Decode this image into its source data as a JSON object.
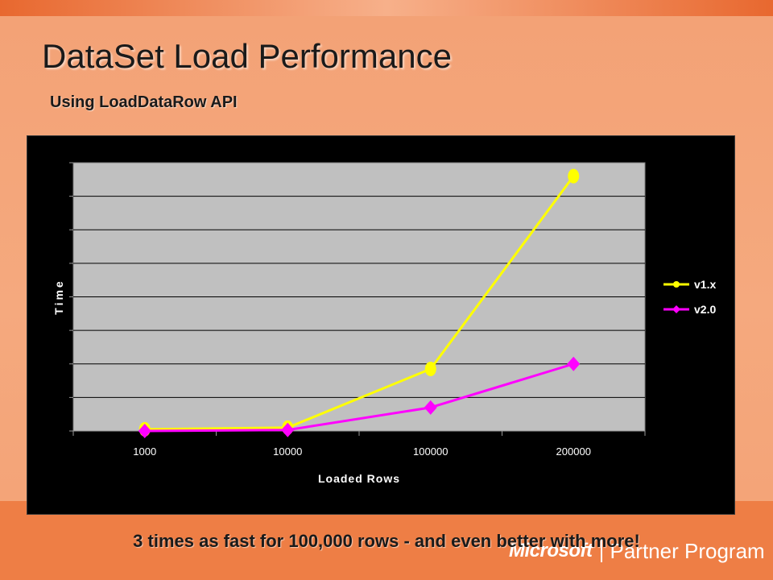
{
  "slide": {
    "title": "DataSet Load Performance",
    "subtitle": "Using LoadDataRow API",
    "footer": "3 times as fast for 100,000 rows - and even better with more!"
  },
  "branding": {
    "logo": "Microsoft",
    "program": "Partner Program"
  },
  "colors": {
    "background": "#F4A578",
    "chart_frame": "#000000",
    "plot_area": "#C0C0C0",
    "series_v1": "#FFFF00",
    "series_v2": "#FF00FF"
  },
  "chart_data": {
    "type": "line",
    "title": "",
    "xlabel": "Loaded Rows",
    "ylabel": "Time",
    "categories": [
      "1000",
      "10000",
      "100000",
      "200000"
    ],
    "series": [
      {
        "name": "v1.x",
        "values": [
          0.5,
          1,
          18.5,
          76
        ],
        "color": "#FFFF00",
        "marker": "circle"
      },
      {
        "name": "v2.0",
        "values": [
          0,
          0.3,
          7,
          20
        ],
        "color": "#FF00FF",
        "marker": "diamond"
      }
    ],
    "ylim": [
      0,
      80
    ],
    "y_gridlines": 8,
    "y_tick_labels_shown": false,
    "grid": true,
    "legend": "right"
  }
}
